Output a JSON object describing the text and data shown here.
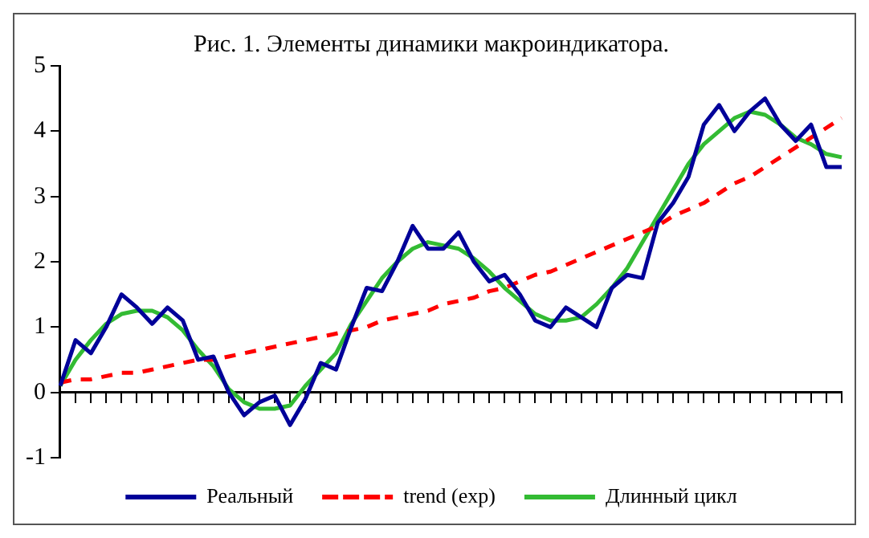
{
  "chart_data": {
    "type": "line",
    "title": "Рис. 1. Элементы динамики макроиндикатора.",
    "categories": [
      null,
      null,
      null,
      null,
      null,
      null,
      null,
      null,
      null,
      null,
      null,
      null,
      null,
      null,
      null,
      null,
      null,
      null,
      null,
      null,
      null,
      null,
      null,
      null,
      null,
      null,
      null,
      null,
      null,
      null,
      null,
      null,
      null,
      null,
      null,
      null,
      null,
      null,
      null,
      null,
      null,
      null,
      null,
      null,
      null,
      null,
      null,
      null,
      null,
      null,
      null,
      null
    ],
    "series": [
      {
        "name": "Реальный",
        "color": "#000099",
        "line_style": "solid",
        "values": [
          0.1,
          0.8,
          0.6,
          1.0,
          1.5,
          1.3,
          1.05,
          1.3,
          1.1,
          0.5,
          0.55,
          0.0,
          -0.35,
          -0.15,
          -0.05,
          -0.5,
          -0.1,
          0.45,
          0.35,
          1.0,
          1.6,
          1.55,
          2.0,
          2.55,
          2.2,
          2.2,
          2.45,
          2.0,
          1.7,
          1.8,
          1.5,
          1.1,
          1.0,
          1.3,
          1.15,
          1.0,
          1.6,
          1.8,
          1.75,
          2.6,
          2.9,
          3.3,
          4.1,
          4.4,
          4.0,
          4.3,
          4.5,
          4.1,
          3.85,
          4.1,
          3.45,
          3.45
        ]
      },
      {
        "name": "trend (exp)",
        "color": "#ff0000",
        "line_style": "dashed",
        "values": [
          0.15,
          0.2,
          0.2,
          0.25,
          0.3,
          0.3,
          0.35,
          0.4,
          0.45,
          0.5,
          0.5,
          0.55,
          0.6,
          0.65,
          0.7,
          0.75,
          0.8,
          0.85,
          0.9,
          0.95,
          1.0,
          1.1,
          1.15,
          1.2,
          1.25,
          1.35,
          1.4,
          1.45,
          1.55,
          1.6,
          1.7,
          1.8,
          1.85,
          1.95,
          2.05,
          2.15,
          2.25,
          2.35,
          2.45,
          2.55,
          2.7,
          2.8,
          2.9,
          3.05,
          3.2,
          3.3,
          3.45,
          3.6,
          3.75,
          3.9,
          4.05,
          4.2
        ]
      },
      {
        "name": "Длинный цикл",
        "color": "#33bb33",
        "line_style": "solid",
        "values": [
          0.1,
          0.5,
          0.8,
          1.05,
          1.2,
          1.25,
          1.25,
          1.15,
          0.95,
          0.65,
          0.4,
          0.05,
          -0.15,
          -0.25,
          -0.25,
          -0.2,
          0.1,
          0.35,
          0.6,
          1.05,
          1.4,
          1.75,
          2.0,
          2.2,
          2.3,
          2.25,
          2.2,
          2.05,
          1.85,
          1.6,
          1.4,
          1.2,
          1.1,
          1.1,
          1.15,
          1.35,
          1.6,
          1.9,
          2.3,
          2.7,
          3.1,
          3.5,
          3.8,
          4.0,
          4.2,
          4.3,
          4.25,
          4.1,
          3.9,
          3.8,
          3.65,
          3.6
        ]
      }
    ],
    "ylim": [
      -1,
      5
    ],
    "yticks": [
      -1,
      0,
      1,
      2,
      3,
      4,
      5
    ],
    "legend": "bottom",
    "marker": "none"
  }
}
